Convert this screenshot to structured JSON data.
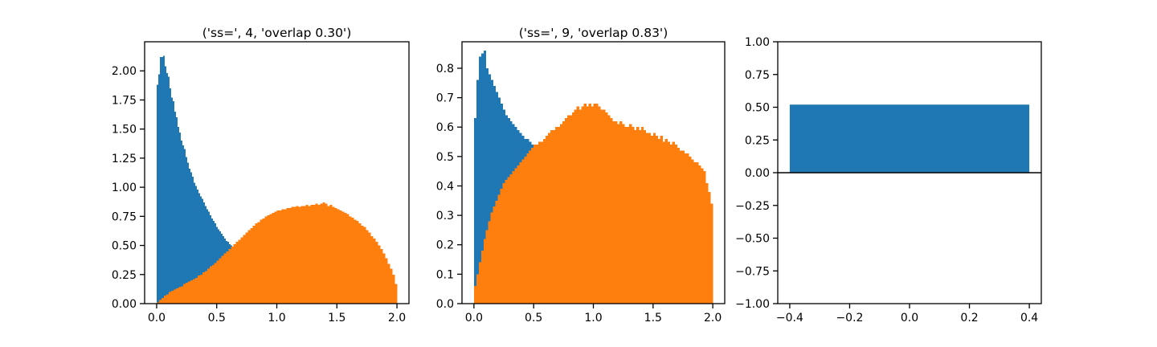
{
  "colors": {
    "blue": "#1f77b4",
    "orange": "#ff7f0e",
    "axis": "#000000"
  },
  "chart_data": [
    {
      "type": "bar",
      "title": "('ss=', 4, 'overlap 0.30')",
      "xlabel": "",
      "ylabel": "",
      "xlim": [
        -0.1,
        2.1
      ],
      "ylim": [
        0,
        2.25
      ],
      "xticks": [
        0.0,
        0.5,
        1.0,
        1.5,
        2.0
      ],
      "xtick_labels": [
        "0.0",
        "0.5",
        "1.0",
        "1.5",
        "2.0"
      ],
      "yticks": [
        0.0,
        0.25,
        0.5,
        0.75,
        1.0,
        1.25,
        1.5,
        1.75,
        2.0
      ],
      "ytick_labels": [
        "0.00",
        "0.25",
        "0.50",
        "0.75",
        "1.00",
        "1.25",
        "1.50",
        "1.75",
        "2.00"
      ],
      "bin_edges_range": [
        0,
        2
      ],
      "series": [
        {
          "color": "#1f77b4",
          "bin_range": [
            0,
            0.8
          ],
          "values": [
            1.88,
            1.97,
            2.12,
            2.12,
            2.13,
            2.04,
            1.98,
            1.95,
            1.85,
            1.77,
            1.74,
            1.65,
            1.6,
            1.52,
            1.47,
            1.4,
            1.36,
            1.33,
            1.26,
            1.21,
            1.16,
            1.13,
            1.09,
            1.04,
            1.01,
            0.98,
            0.95,
            0.92,
            0.9,
            0.87,
            0.84,
            0.81,
            0.79,
            0.76,
            0.73,
            0.71,
            0.69,
            0.66,
            0.64,
            0.62,
            0.6,
            0.58,
            0.56,
            0.54,
            0.53,
            0.51,
            0.5,
            0.48,
            0.47,
            0.46,
            0.45,
            0.44,
            0.43,
            0.43,
            0.42,
            0.41,
            0.41,
            0.4,
            0.39,
            0.39
          ]
        },
        {
          "color": "#ff7f0e",
          "bin_range": [
            0,
            2
          ],
          "values": [
            0.01,
            0.03,
            0.05,
            0.07,
            0.08,
            0.1,
            0.11,
            0.12,
            0.13,
            0.14,
            0.15,
            0.17,
            0.18,
            0.19,
            0.2,
            0.21,
            0.22,
            0.24,
            0.25,
            0.27,
            0.28,
            0.3,
            0.32,
            0.33,
            0.35,
            0.37,
            0.39,
            0.41,
            0.43,
            0.45,
            0.47,
            0.49,
            0.51,
            0.53,
            0.55,
            0.57,
            0.59,
            0.61,
            0.63,
            0.65,
            0.67,
            0.69,
            0.7,
            0.72,
            0.73,
            0.75,
            0.76,
            0.77,
            0.78,
            0.79,
            0.8,
            0.8,
            0.81,
            0.81,
            0.82,
            0.82,
            0.83,
            0.83,
            0.84,
            0.83,
            0.84,
            0.84,
            0.85,
            0.84,
            0.85,
            0.85,
            0.86,
            0.85,
            0.86,
            0.87,
            0.86,
            0.84,
            0.85,
            0.83,
            0.82,
            0.81,
            0.8,
            0.79,
            0.78,
            0.77,
            0.75,
            0.74,
            0.72,
            0.71,
            0.69,
            0.67,
            0.66,
            0.63,
            0.61,
            0.58,
            0.56,
            0.53,
            0.5,
            0.47,
            0.43,
            0.39,
            0.34,
            0.3,
            0.25,
            0.17
          ]
        }
      ]
    },
    {
      "type": "bar",
      "title": "('ss=', 9, 'overlap 0.83')",
      "xlabel": "",
      "ylabel": "",
      "xlim": [
        -0.1,
        2.1
      ],
      "ylim": [
        0,
        0.89
      ],
      "xticks": [
        0.0,
        0.5,
        1.0,
        1.5,
        2.0
      ],
      "xtick_labels": [
        "0.0",
        "0.5",
        "1.0",
        "1.5",
        "2.0"
      ],
      "yticks": [
        0.0,
        0.1,
        0.2,
        0.3,
        0.4,
        0.5,
        0.6,
        0.7,
        0.8
      ],
      "ytick_labels": [
        "0.0",
        "0.1",
        "0.2",
        "0.3",
        "0.4",
        "0.5",
        "0.6",
        "0.7",
        "0.8"
      ],
      "series": [
        {
          "color": "#1f77b4",
          "bin_range": [
            0,
            0.6
          ],
          "values": [
            0.63,
            0.76,
            0.84,
            0.85,
            0.86,
            0.8,
            0.78,
            0.76,
            0.74,
            0.72,
            0.7,
            0.68,
            0.66,
            0.64,
            0.63,
            0.62,
            0.61,
            0.6,
            0.59,
            0.58,
            0.57,
            0.56,
            0.56,
            0.55,
            0.54,
            0.54,
            0.53,
            0.53,
            0.52,
            0.52
          ]
        },
        {
          "color": "#ff7f0e",
          "bin_range": [
            0,
            2
          ],
          "values": [
            0.06,
            0.1,
            0.14,
            0.18,
            0.22,
            0.25,
            0.28,
            0.31,
            0.33,
            0.35,
            0.37,
            0.39,
            0.41,
            0.42,
            0.43,
            0.44,
            0.45,
            0.46,
            0.47,
            0.48,
            0.49,
            0.5,
            0.51,
            0.52,
            0.53,
            0.54,
            0.54,
            0.55,
            0.55,
            0.56,
            0.57,
            0.58,
            0.59,
            0.59,
            0.6,
            0.6,
            0.61,
            0.62,
            0.63,
            0.64,
            0.64,
            0.65,
            0.66,
            0.67,
            0.66,
            0.67,
            0.68,
            0.67,
            0.68,
            0.67,
            0.68,
            0.68,
            0.67,
            0.66,
            0.66,
            0.65,
            0.64,
            0.63,
            0.62,
            0.62,
            0.61,
            0.62,
            0.61,
            0.6,
            0.6,
            0.61,
            0.6,
            0.59,
            0.6,
            0.59,
            0.6,
            0.59,
            0.58,
            0.58,
            0.57,
            0.58,
            0.57,
            0.56,
            0.57,
            0.55,
            0.56,
            0.55,
            0.54,
            0.55,
            0.54,
            0.53,
            0.52,
            0.52,
            0.51,
            0.51,
            0.5,
            0.49,
            0.48,
            0.48,
            0.47,
            0.46,
            0.45,
            0.41,
            0.38,
            0.34
          ]
        }
      ]
    },
    {
      "type": "bar",
      "title": "",
      "xlabel": "",
      "ylabel": "",
      "xlim": [
        -0.44,
        0.44
      ],
      "ylim": [
        -1.0,
        1.0
      ],
      "xticks": [
        -0.4,
        -0.2,
        0.0,
        0.2,
        0.4
      ],
      "xtick_labels": [
        "−0.4",
        "−0.2",
        "0.0",
        "0.2",
        "0.4"
      ],
      "yticks": [
        -1.0,
        -0.75,
        -0.5,
        -0.25,
        0.0,
        0.25,
        0.5,
        0.75,
        1.0
      ],
      "ytick_labels": [
        "−1.00",
        "−0.75",
        "−0.50",
        "−0.25",
        "0.00",
        "0.25",
        "0.50",
        "0.75",
        "1.00"
      ],
      "categories": [
        0.0
      ],
      "values": [
        0.52
      ],
      "bar_width": 0.8,
      "horizontal_line_y": 0.0
    }
  ]
}
